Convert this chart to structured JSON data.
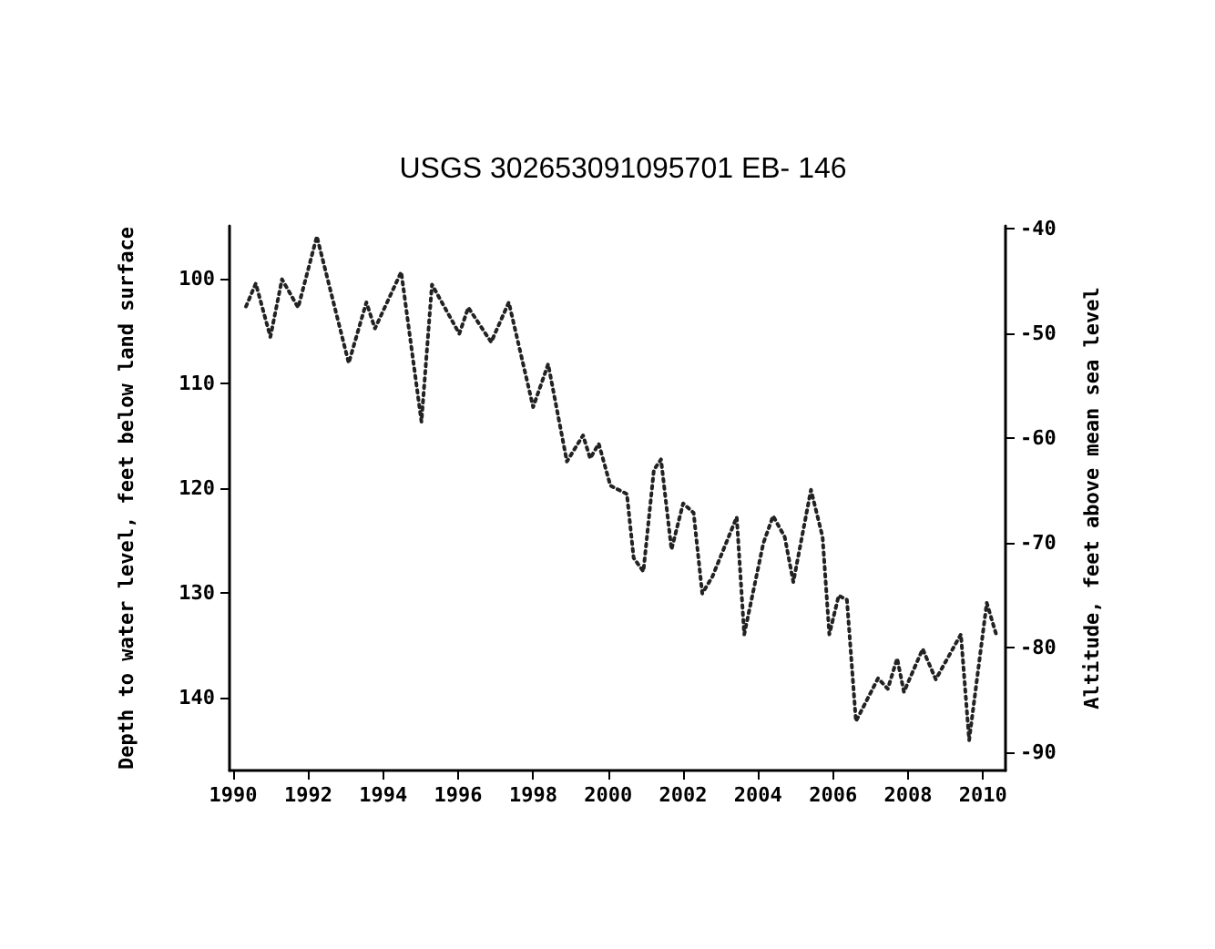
{
  "chart_data": {
    "type": "line",
    "title": "USGS 302653091095701 EB- 146",
    "ylabel": "Depth to water level, feet below land surface",
    "y2label": "Altitude, feet above mean sea level",
    "x": [
      1990.34,
      1990.6,
      1990.99,
      1991.3,
      1991.73,
      1992.23,
      1993.08,
      1993.55,
      1993.78,
      1994.48,
      1995.02,
      1995.3,
      1996.03,
      1996.27,
      1996.88,
      1997.35,
      1998.0,
      1998.4,
      1998.9,
      1999.33,
      1999.52,
      1999.75,
      2000.06,
      2000.5,
      2000.68,
      2000.94,
      2001.22,
      2001.41,
      2001.69,
      2002.0,
      2002.28,
      2002.51,
      2002.78,
      2003.43,
      2003.63,
      2004.14,
      2004.4,
      2004.71,
      2004.94,
      2005.41,
      2005.72,
      2005.9,
      2006.15,
      2006.37,
      2006.61,
      2007.2,
      2007.46,
      2007.71,
      2007.89,
      2008.39,
      2008.74,
      2009.41,
      2009.63,
      2010.1,
      2010.35
    ],
    "series": [
      {
        "color": "#222222",
        "values": [
          102.7,
          100.5,
          105.6,
          100.1,
          102.8,
          96.0,
          108.1,
          102.3,
          104.8,
          99.4,
          113.7,
          100.6,
          105.3,
          102.8,
          106.1,
          102.3,
          112.3,
          108.2,
          117.5,
          115.0,
          117.2,
          115.8,
          119.8,
          120.6,
          126.7,
          128.0,
          118.3,
          117.3,
          125.9,
          121.5,
          122.4,
          130.1,
          128.5,
          122.8,
          134.0,
          125.3,
          122.7,
          124.7,
          129.0,
          120.2,
          124.7,
          134.0,
          130.3,
          130.7,
          142.3,
          138.2,
          139.2,
          136.3,
          139.5,
          135.4,
          138.3,
          134.0,
          144.1,
          131.0,
          134.0
        ]
      }
    ],
    "xlim": [
      1989.9,
      2010.6
    ],
    "xticks": [
      1990,
      1992,
      1994,
      1996,
      1998,
      2000,
      2002,
      2004,
      2006,
      2008,
      2010
    ],
    "ylim": [
      147,
      95
    ],
    "yticks": [
      100,
      110,
      120,
      130,
      140
    ],
    "y2lim": [
      -91.7,
      -39.7
    ],
    "y2ticks": [
      -40,
      -50,
      -60,
      -70,
      -80,
      -90
    ],
    "marker": "none",
    "line_style": "dotted"
  }
}
